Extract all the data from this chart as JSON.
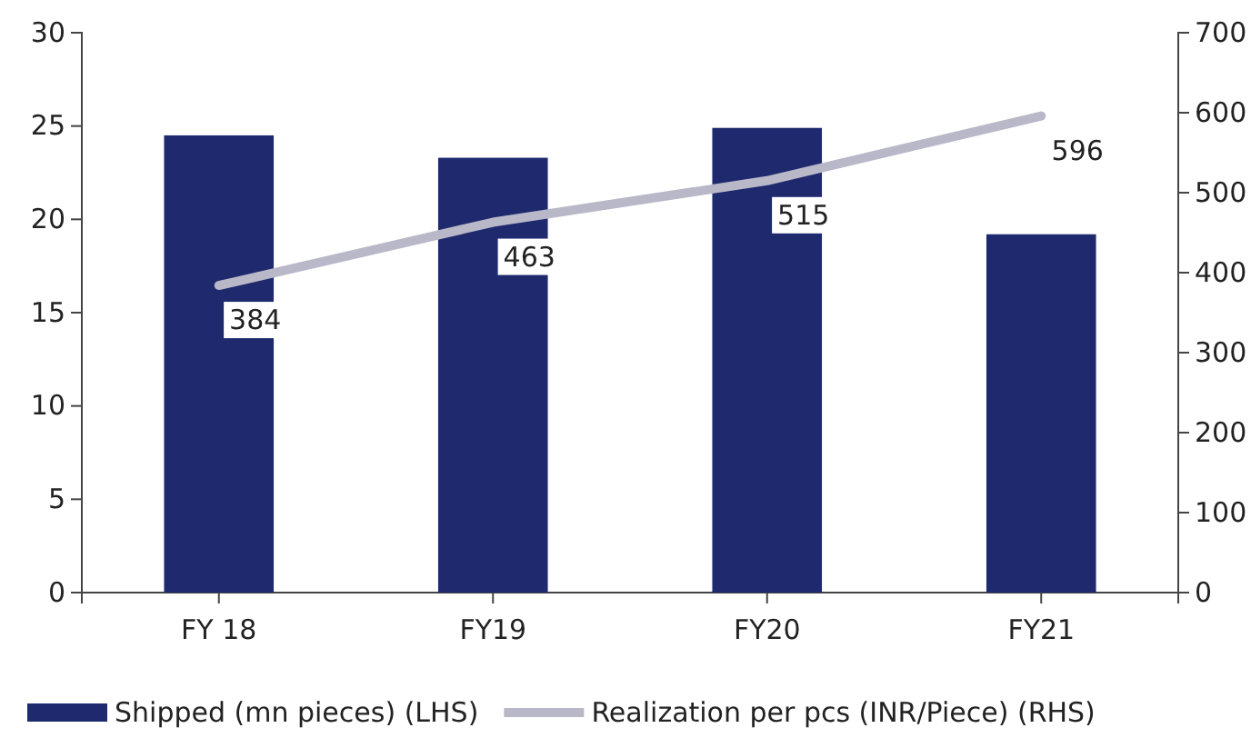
{
  "chart_data": {
    "type": "bar",
    "categories": [
      "FY 18",
      "FY19",
      "FY20",
      "FY21"
    ],
    "series": [
      {
        "name": "Shipped (mn pieces) (LHS)",
        "color": "#1f2a6e",
        "values": [
          24.5,
          23.3,
          24.9,
          19.2
        ]
      },
      {
        "name": "Realization per pcs (INR/Piece) (RHS)",
        "type": "line",
        "axis": "y2",
        "color": "#b9b8c8",
        "values": [
          384,
          463,
          515,
          596
        ],
        "value_labels": [
          "384",
          "463",
          "515",
          "596"
        ]
      }
    ],
    "ylim": [
      0,
      30
    ],
    "yticks": [
      0,
      5,
      10,
      15,
      20,
      25,
      30
    ],
    "y2lim": [
      0,
      700
    ],
    "y2ticks": [
      0,
      100,
      200,
      300,
      400,
      500,
      600,
      700
    ],
    "grid": false,
    "legend": "bottom"
  }
}
